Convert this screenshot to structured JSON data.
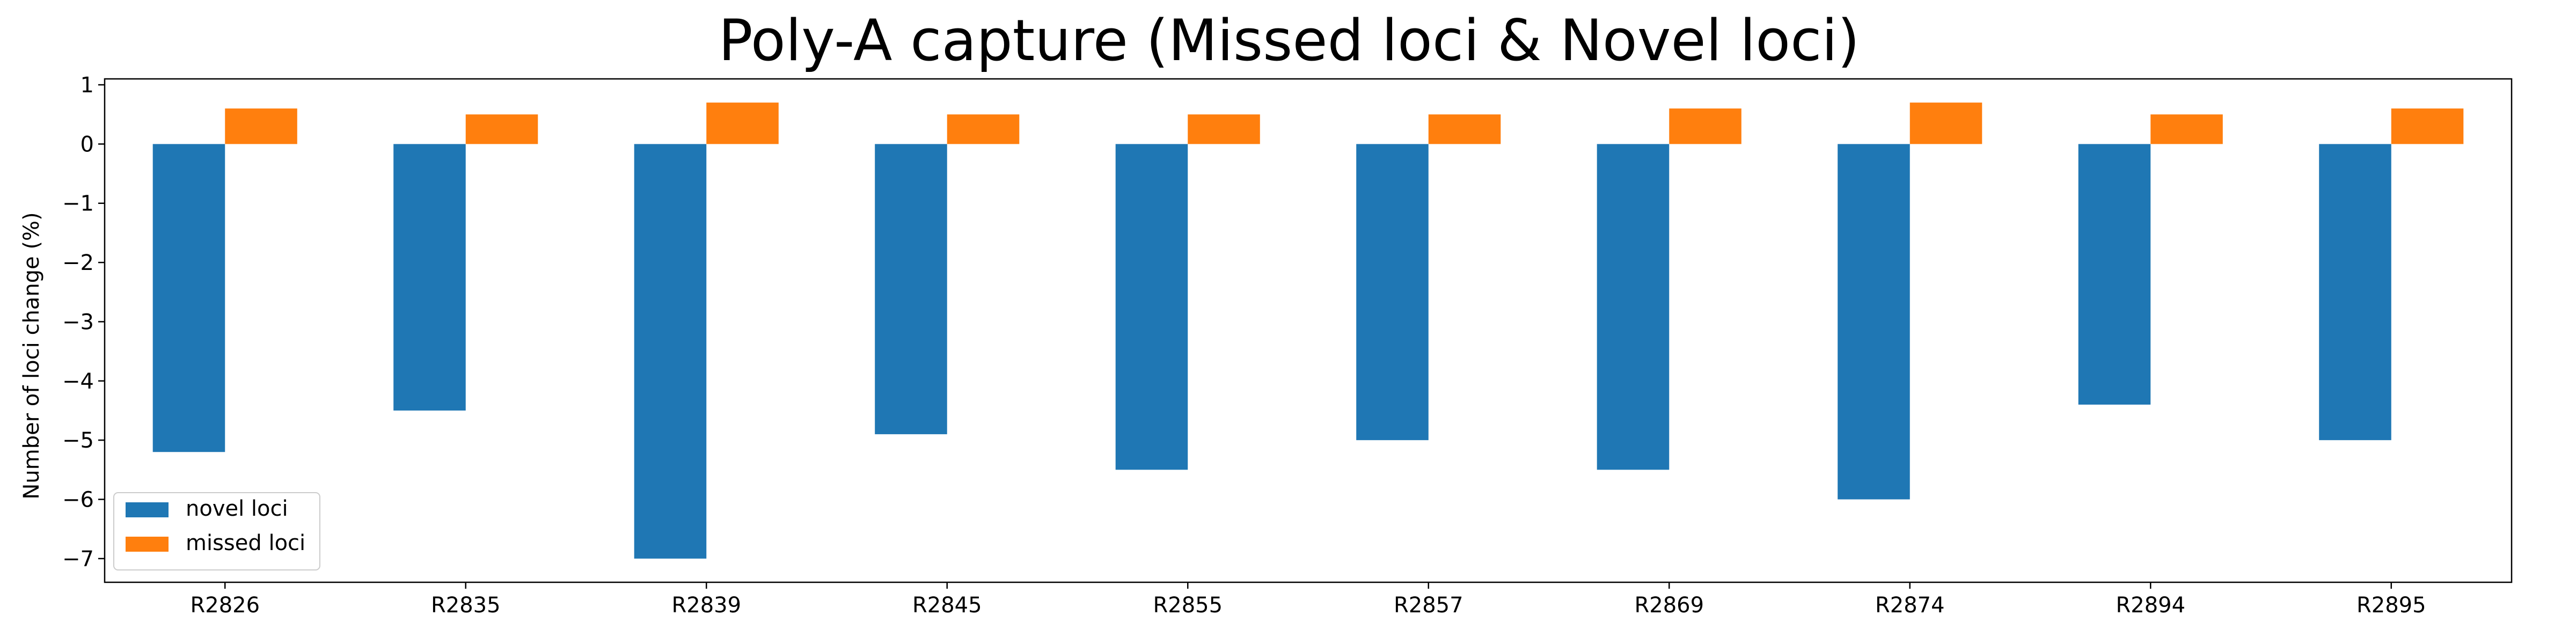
{
  "chart_data": {
    "type": "bar",
    "title": "Poly-A capture (Missed loci & Novel loci)",
    "xlabel": "",
    "ylabel": "Number of loci change (%)",
    "categories": [
      "R2826",
      "R2835",
      "R2839",
      "R2845",
      "R2855",
      "R2857",
      "R2869",
      "R2874",
      "R2894",
      "R2895"
    ],
    "series": [
      {
        "name": "novel loci",
        "color": "#1f77b4",
        "values": [
          -5.2,
          -4.5,
          -7.0,
          -4.9,
          -5.5,
          -5.0,
          -5.5,
          -6.0,
          -4.4,
          -5.0
        ]
      },
      {
        "name": "missed loci",
        "color": "#ff7f0e",
        "values": [
          0.6,
          0.5,
          0.7,
          0.5,
          0.5,
          0.5,
          0.6,
          0.7,
          0.5,
          0.6
        ]
      }
    ],
    "ylim": [
      -7.4,
      1.1
    ],
    "yticks": [
      1,
      0,
      -1,
      -2,
      -3,
      -4,
      -5,
      -6,
      -7
    ],
    "ytick_labels": [
      "1",
      "0",
      "−1",
      "−2",
      "−3",
      "−4",
      "−5",
      "−6",
      "−7"
    ],
    "grid": false,
    "legend_position": "lower-left"
  }
}
